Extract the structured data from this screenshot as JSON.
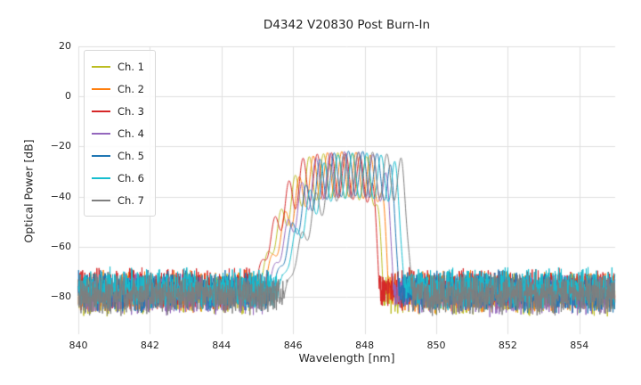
{
  "figure": {
    "background": "#ffffff",
    "grid_color": "#e0e0e0",
    "text_color": "#262626"
  },
  "chart_data": {
    "type": "line",
    "title": "D4342 V20830 Post Burn-In",
    "xlabel": "Wavelength [nm]",
    "ylabel": "Optical Power [dB]",
    "xlim": [
      840,
      855
    ],
    "ylim": [
      -95,
      20
    ],
    "xticks": [
      840,
      842,
      844,
      846,
      848,
      850,
      852,
      854
    ],
    "yticks": [
      20,
      0,
      -20,
      -40,
      -60,
      -80
    ],
    "grid": true,
    "legend": {
      "position": "upper left",
      "entries": [
        "Ch. 1",
        "Ch. 2",
        "Ch. 3",
        "Ch. 4",
        "Ch. 5",
        "Ch. 6",
        "Ch. 7"
      ]
    },
    "noise_floor_db": -78,
    "noise_spread_db": 9,
    "ripple_period_nm": 0.4,
    "peak_region_nm": [
      846.5,
      849.0
    ],
    "series": [
      {
        "name": "Ch. 1",
        "color": "#bcbd22",
        "center_nm": 847.25,
        "peak_db": -22.5
      },
      {
        "name": "Ch. 2",
        "color": "#ff7f0e",
        "center_nm": 847.4,
        "peak_db": -22.0
      },
      {
        "name": "Ch. 3",
        "color": "#d62728",
        "center_nm": 847.15,
        "peak_db": -22.5
      },
      {
        "name": "Ch. 4",
        "color": "#9467bd",
        "center_nm": 847.55,
        "peak_db": -22.0
      },
      {
        "name": "Ch. 5",
        "color": "#1f77b4",
        "center_nm": 847.7,
        "peak_db": -21.8
      },
      {
        "name": "Ch. 6",
        "color": "#17becf",
        "center_nm": 847.85,
        "peak_db": -22.5
      },
      {
        "name": "Ch. 7",
        "color": "#7f7f7f",
        "center_nm": 848.05,
        "peak_db": -22.2
      }
    ]
  }
}
